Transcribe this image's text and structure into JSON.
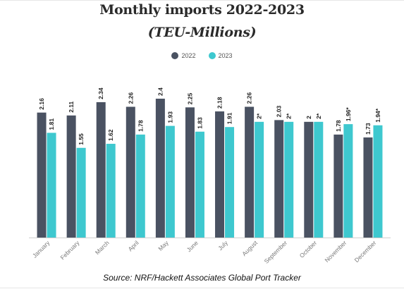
{
  "title": "Monthly imports 2022-2023",
  "subtitle": "(TEU-Millions)",
  "source": "Source: NRF/Hackett Associates Global Port Tracker",
  "colors": {
    "s2022": "#4a5262",
    "s2023": "#3ec8cf",
    "axis": "#cfcfcf",
    "label": "#222222",
    "tick": "#7a7a7a"
  },
  "chart_data": {
    "type": "bar",
    "categories": [
      "January",
      "February",
      "March",
      "April",
      "May",
      "June",
      "July",
      "August",
      "September",
      "October",
      "November",
      "December"
    ],
    "series": [
      {
        "name": "2022",
        "values": [
          2.16,
          2.11,
          2.34,
          2.26,
          2.4,
          2.25,
          2.18,
          2.26,
          2.03,
          2,
          1.78,
          1.73
        ],
        "labels": [
          "2.16",
          "2.11",
          "2.34",
          "2.26",
          "2.4",
          "2.25",
          "2.18",
          "2.26",
          "2.03",
          "2",
          "1.78",
          "1.73"
        ]
      },
      {
        "name": "2023",
        "values": [
          1.81,
          1.55,
          1.62,
          1.78,
          1.93,
          1.83,
          1.91,
          2,
          2,
          2,
          1.96,
          1.94
        ],
        "labels": [
          "1.81",
          "1.55",
          "1.62",
          "1.78",
          "1.93",
          "1.83",
          "1.91",
          "2*",
          "2*",
          "2*",
          "1.96*",
          "1.94*"
        ]
      }
    ],
    "ylim": [
      0,
      2.4
    ],
    "grid": false,
    "legend_position": "top-center"
  }
}
